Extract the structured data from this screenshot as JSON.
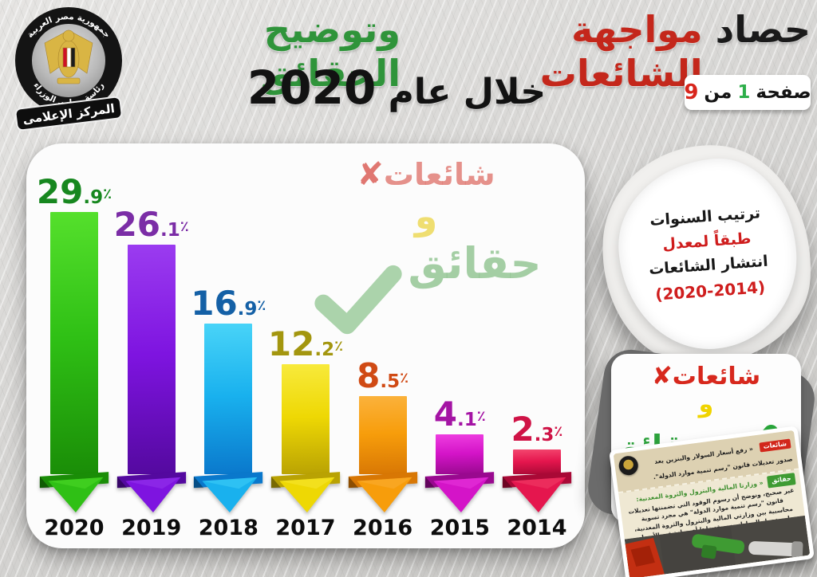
{
  "header": {
    "logo": {
      "arc_top": "جمهورية مصر العربية",
      "arc_bottom": "رئاسة مجلس الوزراء",
      "banner": "المركز الإعلامى"
    },
    "title": {
      "part1": "حصاد",
      "part2": "مواجهة الشائعات",
      "part3": "وتوضيح الحقائق",
      "line2": "خلال عام",
      "year": "2020",
      "color_part1": "#1a1a1a",
      "color_part2": "#c4271b",
      "color_part3": "#2f943a"
    },
    "page_badge": {
      "page_word": "صفحة",
      "current": "1",
      "of_word": "من",
      "total": "9",
      "current_color": "#2eaf4b",
      "total_color": "#d8251c"
    }
  },
  "chart_data": {
    "type": "bar",
    "title": "ترتيب السنوات طبقاً لمعدل انتشار الشائعات (2014-2020)",
    "unit": "٪",
    "categories": [
      "2020",
      "2019",
      "2018",
      "2017",
      "2016",
      "2015",
      "2014"
    ],
    "values": [
      29.9,
      26.1,
      16.9,
      12.2,
      8.5,
      4.1,
      2.3
    ],
    "ylim": [
      0,
      30
    ],
    "legend": "none",
    "bars": [
      {
        "year": "2020",
        "value": 29.9,
        "color_light": "#55e02c",
        "color_main": "#2fc015",
        "color_dark": "#1a8d07",
        "color_label": "#17871f"
      },
      {
        "year": "2019",
        "value": 26.1,
        "color_light": "#9b3cf0",
        "color_main": "#7e14e0",
        "color_dark": "#54099f",
        "color_label": "#7b2da6"
      },
      {
        "year": "2018",
        "value": 16.9,
        "color_light": "#49d4f8",
        "color_main": "#19b1ee",
        "color_dark": "#0a78cc",
        "color_label": "#1460a6"
      },
      {
        "year": "2017",
        "value": 12.2,
        "color_light": "#f8ea3c",
        "color_main": "#eed804",
        "color_dark": "#b9a203",
        "color_label": "#a3960f"
      },
      {
        "year": "2016",
        "value": 8.5,
        "color_light": "#fbb23c",
        "color_main": "#f79d0b",
        "color_dark": "#d87704",
        "color_label": "#d04a14"
      },
      {
        "year": "2015",
        "value": 4.1,
        "color_light": "#ee3ee0",
        "color_main": "#d414c8",
        "color_dark": "#99098f",
        "color_label": "#a414a4"
      },
      {
        "year": "2014",
        "value": 2.3,
        "color_light": "#f4476f",
        "color_main": "#e5164e",
        "color_dark": "#a90936",
        "color_label": "#cf1346"
      }
    ]
  },
  "watermark": {
    "rumors": "شائعات",
    "rumors_mark": "✘",
    "and_word": "و",
    "facts": "حقائق"
  },
  "side": {
    "torn_note": {
      "line1": "ترتيب السنوات",
      "line2": "طبقاً لمعدل",
      "line3": "انتشار الشائعات",
      "line4": "(2020-2014)"
    },
    "badge": {
      "rumors": "شائعات",
      "rumors_mark": "✘",
      "and_word": "و",
      "facts": "حقائق"
    },
    "news_card": {
      "rumor_tag": "شائعات",
      "rumor_text": "« رفع أسعار السولار والبنزين بعد صدور تعديلات قانون \"رسم تنمية موارد الدولة\".",
      "fact_tag": "حقائق",
      "fact_intro": "« وزارتا المالية والبترول والثروة المعدنية:",
      "fact_text": "غير صحيح، ونوضح أن رسوم الوقود التي تضمنتها تعديلات قانون \"رسم تنمية موارد الدولة\" هي مجرد تسوية محاسبية بين وزارتي المالية والبترول والثروة المعدنية، ولن يتحمل المواطنون بمقتضاها أي زيادة في الأسعار."
    }
  }
}
